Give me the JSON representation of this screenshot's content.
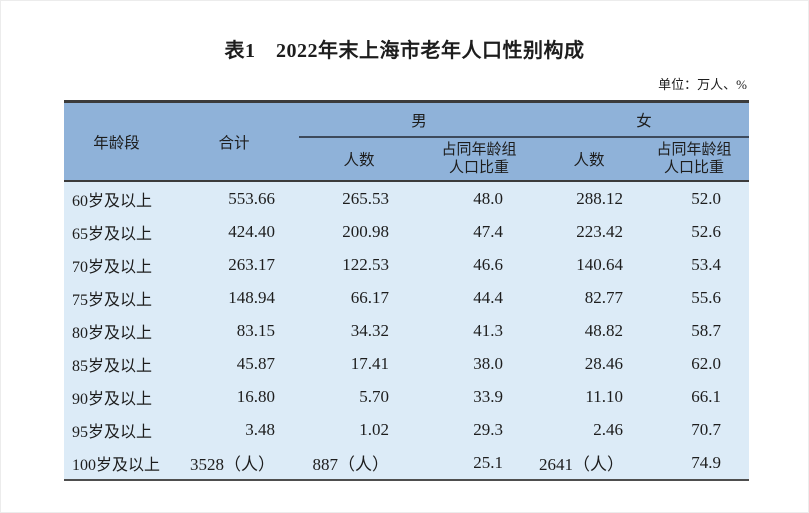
{
  "page": {
    "title": "表1　2022年末上海市老年人口性别构成",
    "unit_note": "单位：万人、%"
  },
  "table": {
    "header": {
      "age_group": "年龄段",
      "total": "合计",
      "male_group": "男",
      "female_group": "女",
      "count": "人数",
      "share_line1": "占同年龄组",
      "share_line2": "人口比重"
    },
    "rows": [
      {
        "age": "60岁及以上",
        "total": "553.66",
        "male_count": "265.53",
        "male_share": "48.0",
        "female_count": "288.12",
        "female_share": "52.0"
      },
      {
        "age": "65岁及以上",
        "total": "424.40",
        "male_count": "200.98",
        "male_share": "47.4",
        "female_count": "223.42",
        "female_share": "52.6"
      },
      {
        "age": "70岁及以上",
        "total": "263.17",
        "male_count": "122.53",
        "male_share": "46.6",
        "female_count": "140.64",
        "female_share": "53.4"
      },
      {
        "age": "75岁及以上",
        "total": "148.94",
        "male_count": "66.17",
        "male_share": "44.4",
        "female_count": "82.77",
        "female_share": "55.6"
      },
      {
        "age": "80岁及以上",
        "total": "83.15",
        "male_count": "34.32",
        "male_share": "41.3",
        "female_count": "48.82",
        "female_share": "58.7"
      },
      {
        "age": "85岁及以上",
        "total": "45.87",
        "male_count": "17.41",
        "male_share": "38.0",
        "female_count": "28.46",
        "female_share": "62.0"
      },
      {
        "age": "90岁及以上",
        "total": "16.80",
        "male_count": "5.70",
        "male_share": "33.9",
        "female_count": "11.10",
        "female_share": "66.1"
      },
      {
        "age": "95岁及以上",
        "total": "3.48",
        "male_count": "1.02",
        "male_share": "29.3",
        "female_count": "2.46",
        "female_share": "70.7"
      },
      {
        "age": "100岁及以上",
        "total": "3528（人）",
        "male_count": "887（人）",
        "male_share": "25.1",
        "female_count": "2641（人）",
        "female_share": "74.9"
      }
    ]
  },
  "colors": {
    "header_bg": "#8fb2d9",
    "body_bg": "#dcebf7",
    "border_dark": "#3b3b3b",
    "spanner_line": "#3d4a5c",
    "text": "#1d1d1d"
  }
}
